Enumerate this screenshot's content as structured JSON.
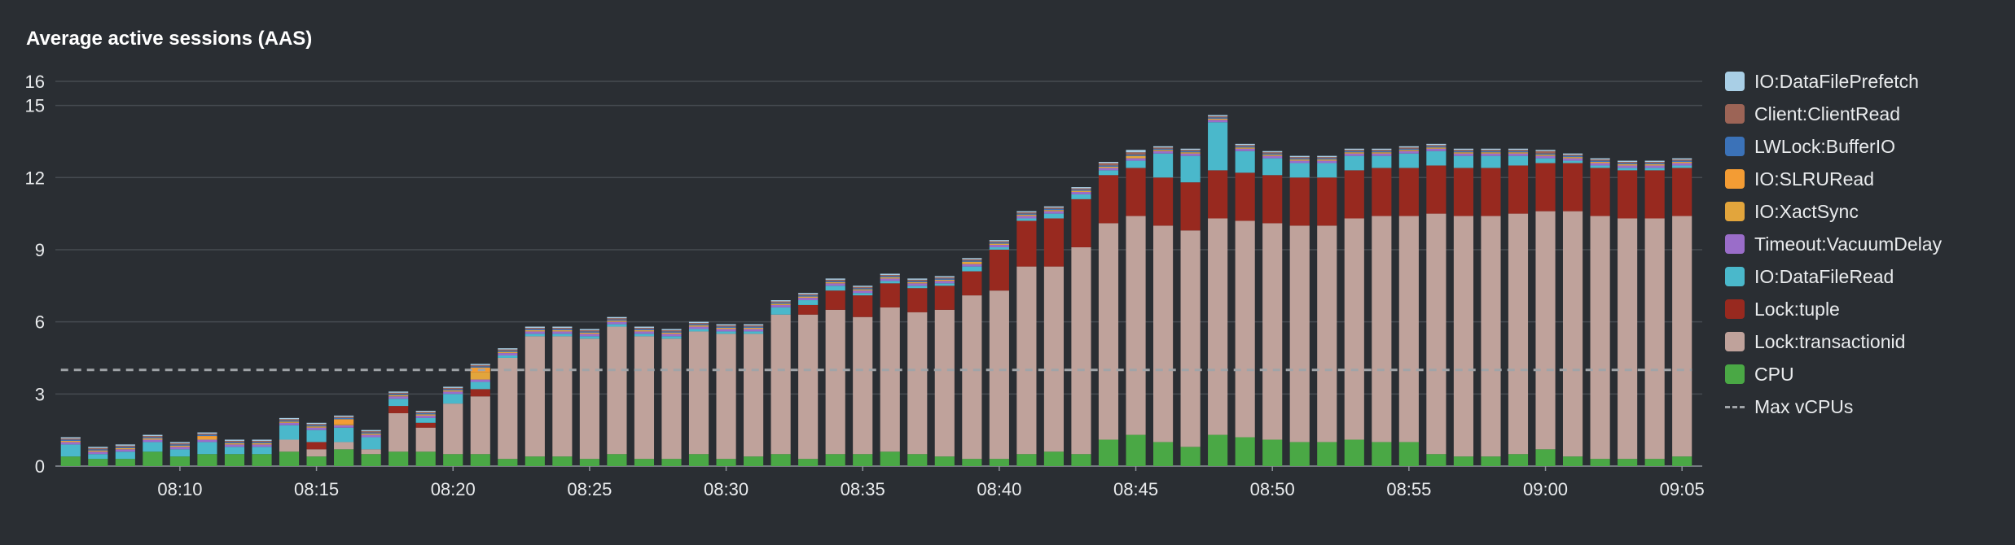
{
  "panel": {
    "title": "Average active sessions (AAS)"
  },
  "chart_data": {
    "type": "bar",
    "stacked": true,
    "title": "Average active sessions (AAS)",
    "xlabel": "",
    "ylabel": "",
    "ylim": [
      0,
      16
    ],
    "yticks": [
      0,
      3,
      6,
      9,
      12,
      15,
      16
    ],
    "grid": true,
    "legend_position": "right",
    "x_start": "08:06",
    "x_interval_minutes": 1,
    "x_tick_labels": [
      "08:10",
      "08:15",
      "08:20",
      "08:25",
      "08:30",
      "08:35",
      "08:40",
      "08:45",
      "08:50",
      "08:55",
      "09:00",
      "09:05"
    ],
    "series": [
      {
        "name": "CPU",
        "color": "#4aa845",
        "values": [
          0.4,
          0.3,
          0.3,
          0.6,
          0.4,
          0.5,
          0.5,
          0.5,
          0.6,
          0.4,
          0.7,
          0.5,
          0.6,
          0.6,
          0.5,
          0.5,
          0.3,
          0.4,
          0.4,
          0.3,
          0.5,
          0.3,
          0.3,
          0.5,
          0.3,
          0.4,
          0.5,
          0.3,
          0.5,
          0.5,
          0.6,
          0.5,
          0.4,
          0.3,
          0.3,
          0.5,
          0.6,
          0.5,
          1.1,
          1.3,
          1.0,
          0.8,
          1.3,
          1.2,
          1.1,
          1.0,
          1.0,
          1.1,
          1.0,
          1.0,
          0.5,
          0.4,
          0.4,
          0.5,
          0.7,
          0.4,
          0.3,
          0.3,
          0.3,
          0.4
        ]
      },
      {
        "name": "Lock:transactionid",
        "color": "#bfa29b",
        "values": [
          0,
          0,
          0,
          0,
          0,
          0,
          0,
          0,
          0.5,
          0.3,
          0.3,
          0.2,
          1.6,
          1.0,
          2.1,
          2.4,
          4.2,
          5.0,
          5.0,
          5.0,
          5.3,
          5.1,
          5.0,
          5.1,
          5.2,
          5.1,
          5.8,
          6.0,
          6.0,
          5.7,
          6.0,
          5.9,
          6.1,
          6.8,
          7.0,
          7.8,
          7.7,
          8.6,
          9.0,
          9.1,
          9.0,
          9.0,
          9.0,
          9.0,
          9.0,
          9.0,
          9.0,
          9.2,
          9.4,
          9.4,
          10.0,
          10.0,
          10.0,
          10.0,
          9.9,
          10.2,
          10.1,
          10.0,
          10.0,
          10.0
        ]
      },
      {
        "name": "Lock:tuple",
        "color": "#98291f",
        "values": [
          0,
          0,
          0,
          0,
          0,
          0,
          0,
          0,
          0,
          0.3,
          0,
          0,
          0.3,
          0.2,
          0,
          0.3,
          0,
          0,
          0,
          0,
          0,
          0,
          0,
          0,
          0,
          0,
          0,
          0.4,
          0.8,
          0.9,
          1.0,
          1.0,
          1.0,
          1.0,
          1.7,
          1.9,
          2.0,
          2.0,
          2.0,
          2.0,
          2.0,
          2.0,
          2.0,
          2.0,
          2.0,
          2.0,
          2.0,
          2.0,
          2.0,
          2.0,
          2.0,
          2.0,
          2.0,
          2.0,
          2.0,
          2.0,
          2.0,
          2.0,
          2.0,
          2.0
        ]
      },
      {
        "name": "IO:DataFileRead",
        "color": "#4ab8cb",
        "values": [
          0.5,
          0.2,
          0.3,
          0.4,
          0.3,
          0.5,
          0.3,
          0.3,
          0.6,
          0.5,
          0.6,
          0.5,
          0.3,
          0.2,
          0.4,
          0.3,
          0.1,
          0.1,
          0.1,
          0.1,
          0.1,
          0.1,
          0.1,
          0.1,
          0.1,
          0.1,
          0.3,
          0.2,
          0.2,
          0.1,
          0.1,
          0.1,
          0.1,
          0.2,
          0.1,
          0.1,
          0.2,
          0.2,
          0.2,
          0.3,
          1.0,
          1.1,
          2.0,
          0.9,
          0.7,
          0.6,
          0.6,
          0.6,
          0.5,
          0.6,
          0.6,
          0.5,
          0.5,
          0.4,
          0.2,
          0.1,
          0.1,
          0.1,
          0.1,
          0.1
        ]
      },
      {
        "name": "Timeout:VacuumDelay",
        "color": "#9a6dc9",
        "values": [
          0.1,
          0.1,
          0.1,
          0.1,
          0.1,
          0.1,
          0.1,
          0.1,
          0.1,
          0.1,
          0.1,
          0.1,
          0.1,
          0.1,
          0.1,
          0.1,
          0.1,
          0.1,
          0.1,
          0.1,
          0.1,
          0.1,
          0.1,
          0.1,
          0.1,
          0.1,
          0.1,
          0.1,
          0.1,
          0.1,
          0.1,
          0.1,
          0.1,
          0.1,
          0.1,
          0.1,
          0.1,
          0.1,
          0.1,
          0.1,
          0.1,
          0.1,
          0.1,
          0.1,
          0.1,
          0.1,
          0.1,
          0.1,
          0.1,
          0.1,
          0.1,
          0.1,
          0.1,
          0.1,
          0.1,
          0.1,
          0.1,
          0.1,
          0.1,
          0.1
        ]
      },
      {
        "name": "IO:XactSync",
        "color": "#e2a53c",
        "values": [
          0.05,
          0.05,
          0.05,
          0.05,
          0.05,
          0.05,
          0.05,
          0.05,
          0.05,
          0.05,
          0.05,
          0.05,
          0.05,
          0.05,
          0.05,
          0.3,
          0.05,
          0.05,
          0.05,
          0.05,
          0.05,
          0.05,
          0.05,
          0.05,
          0.05,
          0.05,
          0.05,
          0.05,
          0.05,
          0.05,
          0.05,
          0.05,
          0.05,
          0.1,
          0.05,
          0.05,
          0.05,
          0.05,
          0.05,
          0.1,
          0.05,
          0.05,
          0.05,
          0.05,
          0.05,
          0.05,
          0.05,
          0.05,
          0.05,
          0.05,
          0.05,
          0.05,
          0.05,
          0.05,
          0.05,
          0.05,
          0.05,
          0.05,
          0.05,
          0.05
        ]
      },
      {
        "name": "IO:SLRURead",
        "color": "#f39c34",
        "values": [
          0,
          0,
          0,
          0,
          0,
          0.1,
          0,
          0,
          0,
          0,
          0.2,
          0,
          0,
          0,
          0,
          0.2,
          0,
          0,
          0,
          0,
          0,
          0,
          0,
          0,
          0,
          0,
          0,
          0,
          0,
          0,
          0,
          0,
          0,
          0,
          0,
          0,
          0,
          0,
          0,
          0,
          0,
          0,
          0,
          0,
          0,
          0,
          0,
          0,
          0,
          0,
          0,
          0,
          0,
          0,
          0,
          0,
          0,
          0,
          0,
          0
        ]
      },
      {
        "name": "LWLock:BufferIO",
        "color": "#3b72b8",
        "values": [
          0.05,
          0.05,
          0.05,
          0.05,
          0.05,
          0.05,
          0.05,
          0.05,
          0.05,
          0.05,
          0.05,
          0.05,
          0.05,
          0.05,
          0.05,
          0.05,
          0.05,
          0.05,
          0.05,
          0.05,
          0.05,
          0.05,
          0.05,
          0.05,
          0.05,
          0.05,
          0.05,
          0.05,
          0.05,
          0.05,
          0.05,
          0.05,
          0.05,
          0.05,
          0.05,
          0.05,
          0.05,
          0.05,
          0.05,
          0.05,
          0.05,
          0.05,
          0.05,
          0.05,
          0.05,
          0.05,
          0.05,
          0.05,
          0.05,
          0.05,
          0.05,
          0.05,
          0.05,
          0.05,
          0.05,
          0.05,
          0.05,
          0.05,
          0.05,
          0.05
        ]
      },
      {
        "name": "Client:ClientRead",
        "color": "#9c6456",
        "values": [
          0.05,
          0.05,
          0.05,
          0.05,
          0.05,
          0.05,
          0.05,
          0.05,
          0.05,
          0.05,
          0.05,
          0.05,
          0.05,
          0.05,
          0.05,
          0.05,
          0.05,
          0.05,
          0.05,
          0.05,
          0.05,
          0.05,
          0.05,
          0.05,
          0.05,
          0.05,
          0.05,
          0.05,
          0.05,
          0.05,
          0.05,
          0.05,
          0.05,
          0.05,
          0.05,
          0.05,
          0.05,
          0.05,
          0.1,
          0.1,
          0.05,
          0.05,
          0.05,
          0.05,
          0.05,
          0.05,
          0.05,
          0.05,
          0.05,
          0.05,
          0.05,
          0.05,
          0.05,
          0.05,
          0.1,
          0.05,
          0.05,
          0.05,
          0.05,
          0.05
        ]
      },
      {
        "name": "IO:DataFilePrefetch",
        "color": "#a9cfe6",
        "values": [
          0.05,
          0.05,
          0.05,
          0.05,
          0.05,
          0.05,
          0.05,
          0.05,
          0.05,
          0.05,
          0.05,
          0.05,
          0.05,
          0.05,
          0.05,
          0.05,
          0.05,
          0.05,
          0.05,
          0.05,
          0.05,
          0.05,
          0.05,
          0.05,
          0.05,
          0.05,
          0.05,
          0.05,
          0.05,
          0.05,
          0.05,
          0.05,
          0.05,
          0.05,
          0.05,
          0.05,
          0.05,
          0.05,
          0.05,
          0.1,
          0.05,
          0.05,
          0.05,
          0.05,
          0.05,
          0.05,
          0.05,
          0.05,
          0.05,
          0.05,
          0.05,
          0.05,
          0.05,
          0.05,
          0.05,
          0.05,
          0.05,
          0.05,
          0.05,
          0.05
        ]
      }
    ],
    "reference_lines": [
      {
        "name": "Max vCPUs",
        "value": 4,
        "style": "dashed",
        "color": "#a0a4a8"
      }
    ]
  },
  "legend": [
    {
      "label": "IO:DataFilePrefetch",
      "color": "#a9cfe6"
    },
    {
      "label": "Client:ClientRead",
      "color": "#9c6456"
    },
    {
      "label": "LWLock:BufferIO",
      "color": "#3b72b8"
    },
    {
      "label": "IO:SLRURead",
      "color": "#f39c34"
    },
    {
      "label": "IO:XactSync",
      "color": "#e2a53c"
    },
    {
      "label": "Timeout:VacuumDelay",
      "color": "#9a6dc9"
    },
    {
      "label": "IO:DataFileRead",
      "color": "#4ab8cb"
    },
    {
      "label": "Lock:tuple",
      "color": "#98291f"
    },
    {
      "label": "Lock:transactionid",
      "color": "#bfa29b"
    },
    {
      "label": "CPU",
      "color": "#4aa845"
    },
    {
      "label": "Max vCPUs",
      "color": "#a0a4a8",
      "dashed": true
    }
  ]
}
